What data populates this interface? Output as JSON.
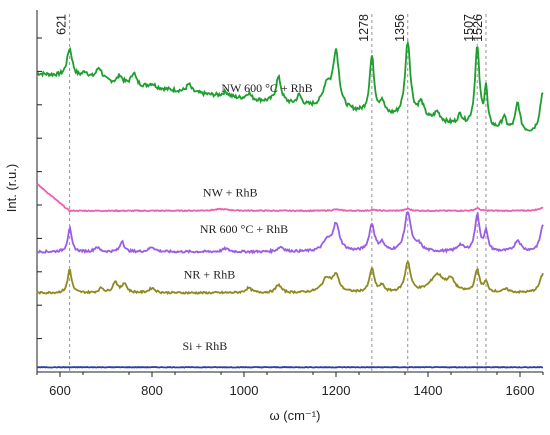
{
  "chart_data": {
    "type": "line",
    "title": "",
    "xlabel": "ω (cm⁻¹)",
    "ylabel": "Int. (r.u.)",
    "xlim": [
      550,
      1650
    ],
    "x_ticks": [
      600,
      800,
      1000,
      1200,
      1400,
      1600
    ],
    "y_ticks_labeled": false,
    "y_tick_count": 11,
    "grid": false,
    "legend": "none (labels placed beside each curve)",
    "peak_markers": [
      {
        "x": 621,
        "label": "621"
      },
      {
        "x": 1278,
        "label": "1278"
      },
      {
        "x": 1356,
        "label": "1356"
      },
      {
        "x": 1507,
        "label": "1507"
      },
      {
        "x": 1526,
        "label": "1526"
      }
    ],
    "series": [
      {
        "name": "NW 600 °C + RhB",
        "color": "#1e9e2e",
        "baseline": 8.3,
        "slope": -0.0018,
        "noise": 0.06,
        "start_drop": 0.0,
        "peaks": [
          [
            621,
            0.9,
            7
          ],
          [
            655,
            0.2,
            8
          ],
          [
            685,
            0.4,
            8
          ],
          [
            730,
            0.25,
            6
          ],
          [
            760,
            0.4,
            6
          ],
          [
            800,
            0.12,
            8
          ],
          [
            880,
            0.25,
            6
          ],
          [
            960,
            0.15,
            8
          ],
          [
            1010,
            0.2,
            6
          ],
          [
            1075,
            0.8,
            7
          ],
          [
            1120,
            0.3,
            6
          ],
          [
            1180,
            0.7,
            10
          ],
          [
            1200,
            1.8,
            8
          ],
          [
            1278,
            1.8,
            6
          ],
          [
            1300,
            0.4,
            6
          ],
          [
            1356,
            2.4,
            7
          ],
          [
            1385,
            0.5,
            8
          ],
          [
            1420,
            0.3,
            8
          ],
          [
            1470,
            0.3,
            6
          ],
          [
            1507,
            2.5,
            6
          ],
          [
            1526,
            1.2,
            4
          ],
          [
            1565,
            0.4,
            6
          ],
          [
            1595,
            0.9,
            6
          ],
          [
            1650,
            1.4,
            8
          ]
        ]
      },
      {
        "name": "NW + RhB",
        "color": "#ee5fb0",
        "baseline": 4.95,
        "slope": 0.0,
        "noise": 0.015,
        "start_drop": 0.85,
        "peaks": [
          [
            950,
            0.05,
            20
          ],
          [
            1200,
            0.04,
            10
          ],
          [
            1280,
            0.03,
            6
          ],
          [
            1356,
            0.06,
            7
          ],
          [
            1507,
            0.08,
            6
          ],
          [
            1650,
            0.1,
            10
          ]
        ]
      },
      {
        "name": "NR 600 °C + RhB",
        "color": "#9b5de5",
        "baseline": 3.65,
        "slope": 0.0,
        "noise": 0.035,
        "start_drop": 0.0,
        "peaks": [
          [
            621,
            0.75,
            5
          ],
          [
            680,
            0.15,
            6
          ],
          [
            735,
            0.35,
            5
          ],
          [
            800,
            0.15,
            8
          ],
          [
            960,
            0.1,
            8
          ],
          [
            1080,
            0.15,
            8
          ],
          [
            1180,
            0.3,
            10
          ],
          [
            1200,
            0.85,
            9
          ],
          [
            1278,
            0.85,
            7
          ],
          [
            1300,
            0.25,
            6
          ],
          [
            1356,
            1.25,
            8
          ],
          [
            1380,
            0.2,
            8
          ],
          [
            1470,
            0.2,
            8
          ],
          [
            1507,
            1.15,
            6
          ],
          [
            1526,
            0.6,
            5
          ],
          [
            1595,
            0.35,
            8
          ],
          [
            1650,
            0.85,
            7
          ]
        ]
      },
      {
        "name": "NR + RhB",
        "color": "#8f8a1f",
        "baseline": 2.35,
        "slope": 0.0,
        "noise": 0.03,
        "start_drop": 0.0,
        "peaks": [
          [
            621,
            0.75,
            5
          ],
          [
            690,
            0.15,
            6
          ],
          [
            720,
            0.35,
            6
          ],
          [
            740,
            0.3,
            6
          ],
          [
            800,
            0.15,
            8
          ],
          [
            1010,
            0.15,
            8
          ],
          [
            1075,
            0.25,
            7
          ],
          [
            1180,
            0.45,
            12
          ],
          [
            1200,
            0.5,
            8
          ],
          [
            1278,
            0.75,
            6
          ],
          [
            1300,
            0.2,
            6
          ],
          [
            1356,
            0.95,
            7
          ],
          [
            1420,
            0.55,
            18
          ],
          [
            1450,
            0.35,
            10
          ],
          [
            1507,
            0.7,
            6
          ],
          [
            1526,
            0.3,
            5
          ],
          [
            1570,
            0.1,
            8
          ],
          [
            1650,
            0.6,
            8
          ]
        ]
      },
      {
        "name": "Si + RhB",
        "color": "#2b3ea8",
        "baseline": 0.0,
        "slope": 0.0,
        "noise": 0.01,
        "start_drop": 0.0,
        "peaks": []
      }
    ],
    "ylim": [
      -0.15,
      11.3
    ]
  }
}
